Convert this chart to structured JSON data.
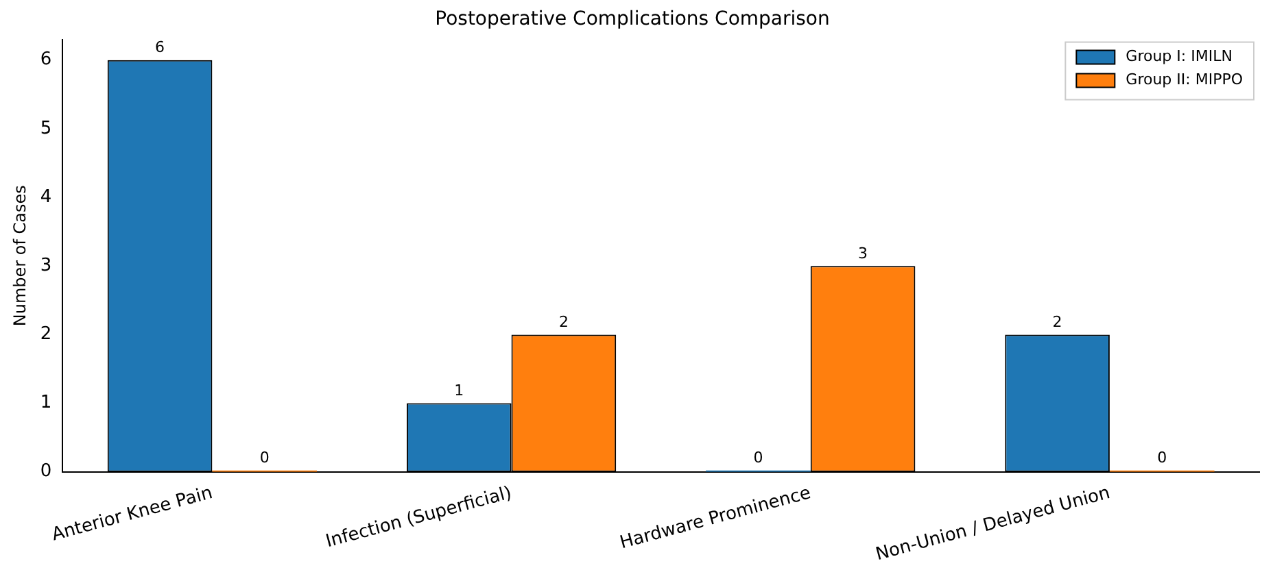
{
  "chart_data": {
    "type": "bar",
    "title": "Postoperative Complications Comparison",
    "ylabel": "Number of Cases",
    "categories": [
      "Anterior Knee Pain",
      "Infection (Superficial)",
      "Hardware Prominence",
      "Non-Union / Delayed Union"
    ],
    "series": [
      {
        "name": "Group I: IMILN",
        "color": "#1f77b4",
        "values": [
          6,
          1,
          0,
          2
        ]
      },
      {
        "name": "Group II: MIPPO",
        "color": "#ff7f0e",
        "values": [
          0,
          2,
          3,
          0
        ]
      }
    ],
    "ylim": [
      0,
      6.3
    ],
    "yticks": [
      0,
      1,
      2,
      3,
      4,
      5,
      6
    ],
    "grid": false,
    "legend": "top right",
    "data_labels": true
  }
}
